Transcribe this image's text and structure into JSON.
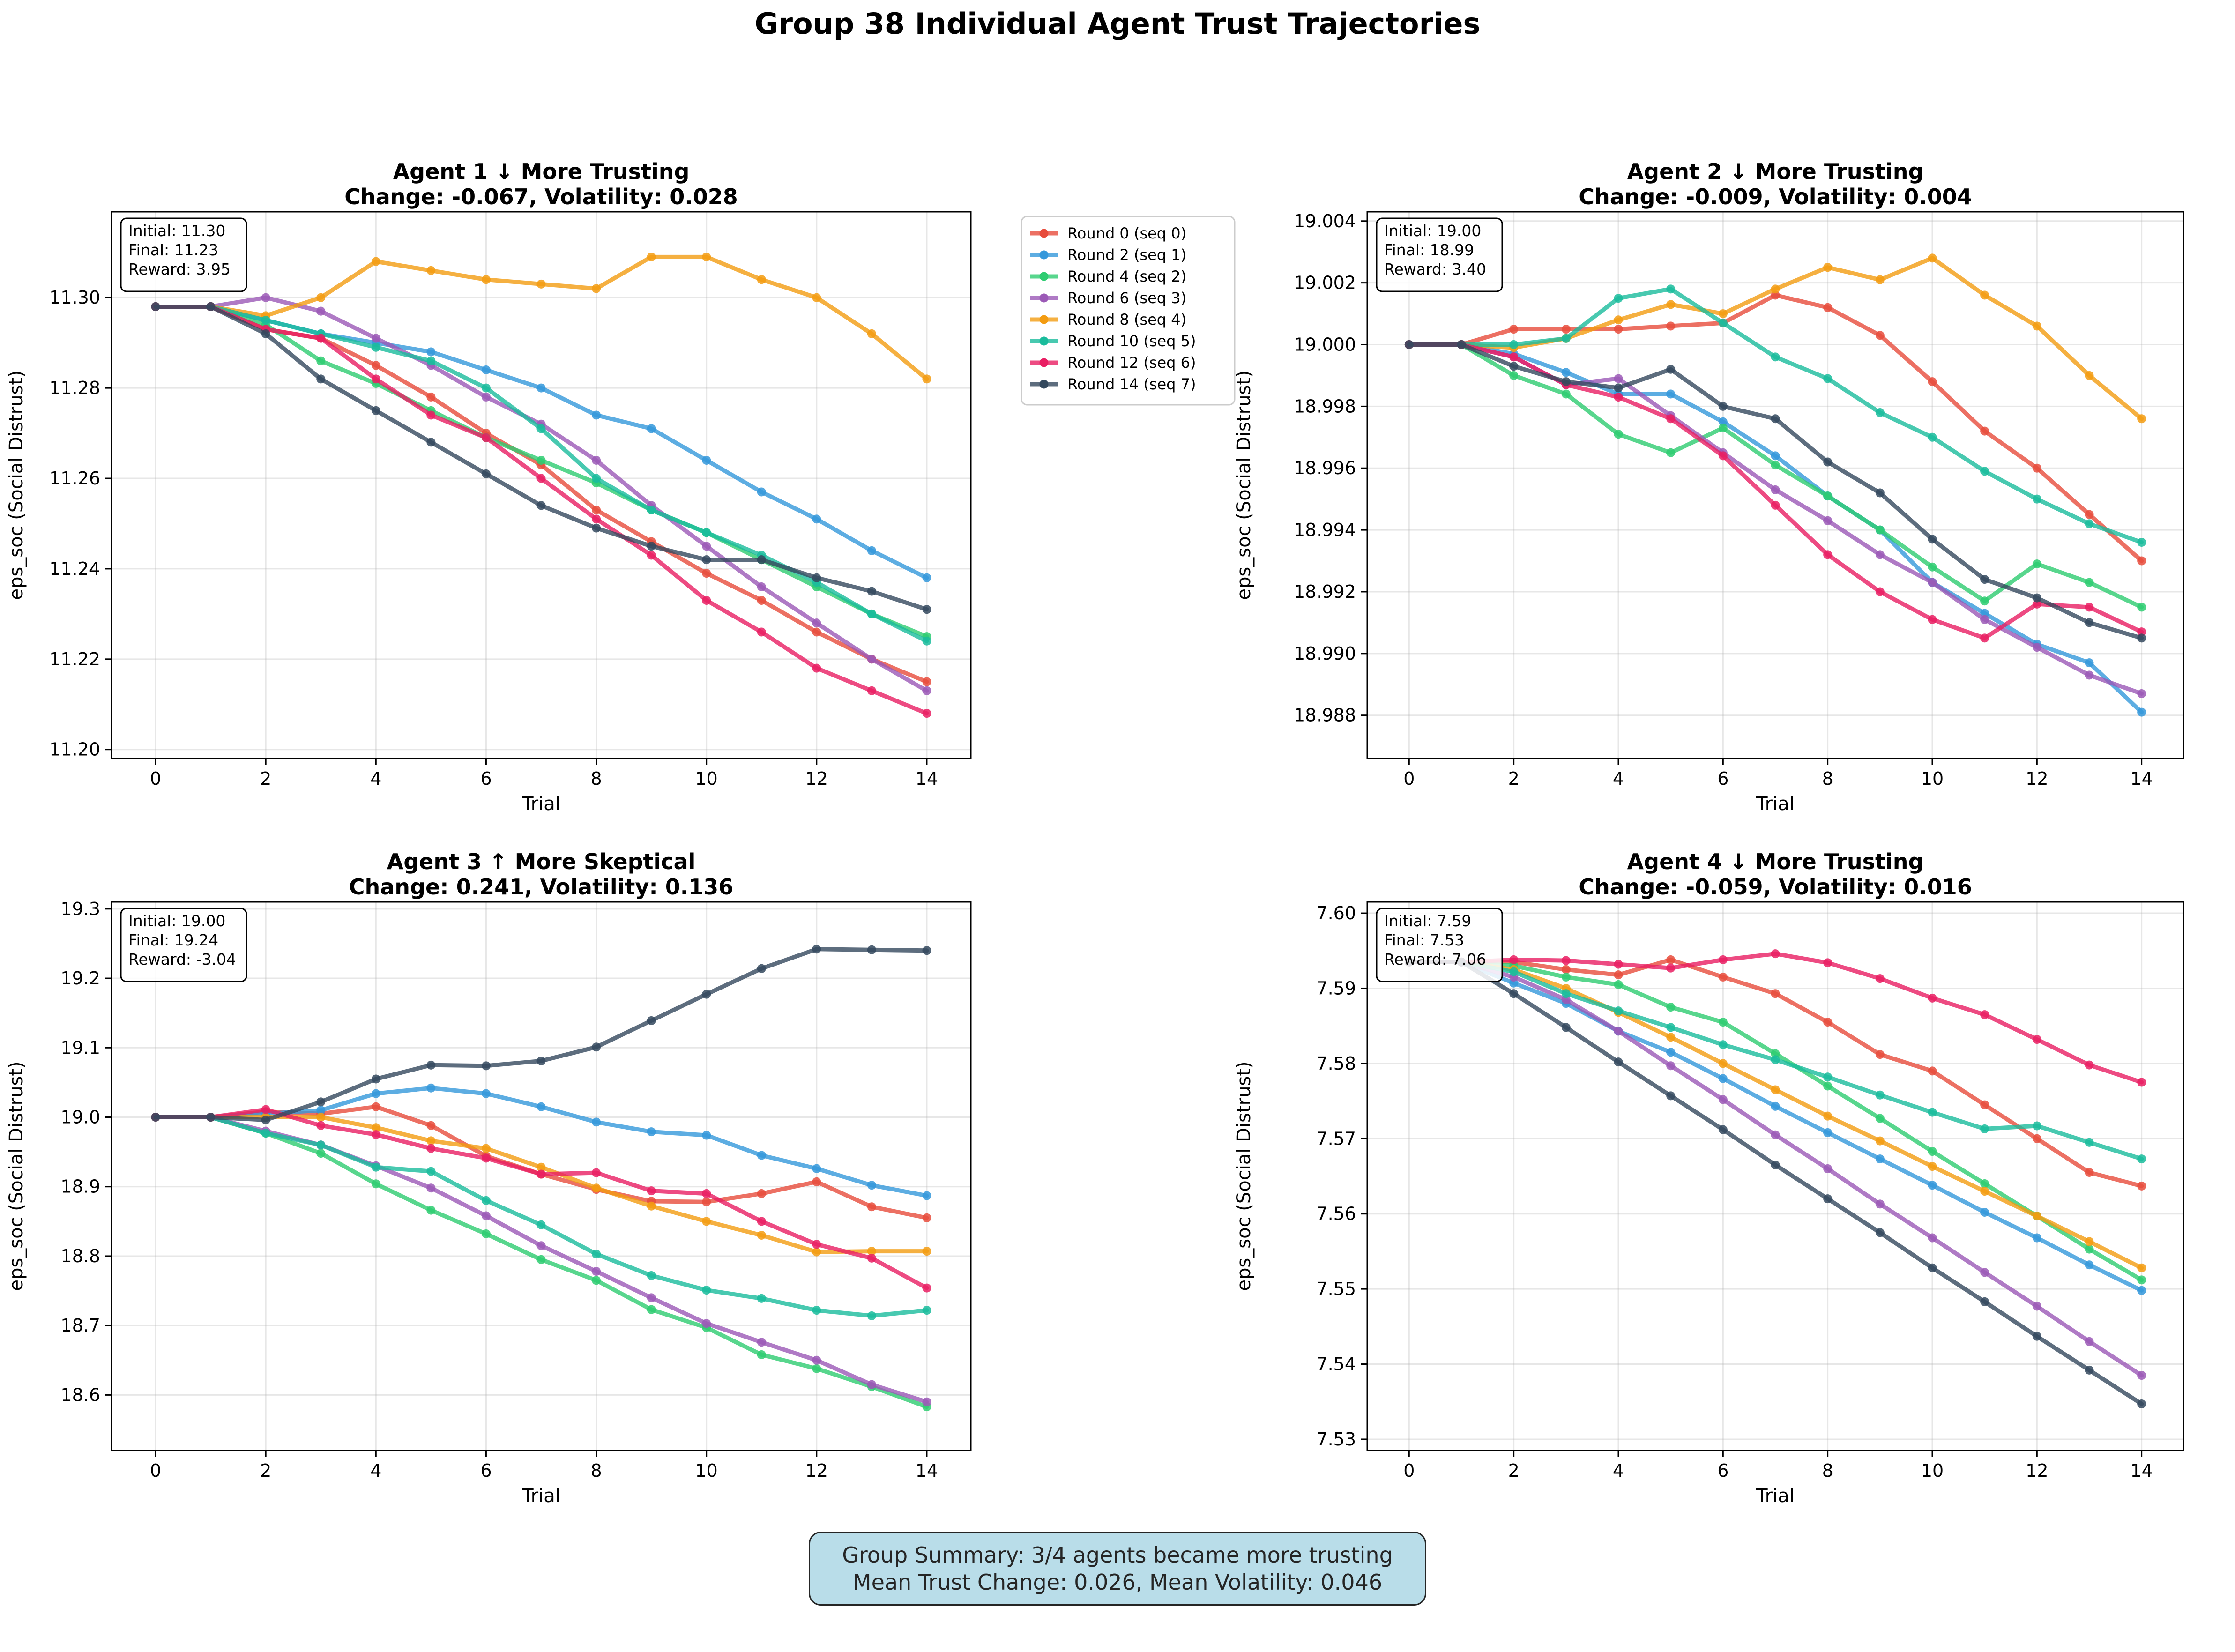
{
  "title": "Group 38 Individual Agent Trust Trajectories",
  "summary": {
    "line1": "Group Summary: 3/4 agents became more trusting",
    "line2": "Mean Trust Change: 0.026, Mean Volatility: 0.046"
  },
  "series_colors": [
    "#e74c3c",
    "#3498db",
    "#2ecc71",
    "#9b59b6",
    "#f39c12",
    "#1abc9c",
    "#e91e63",
    "#34495e"
  ],
  "chart_data": [
    {
      "type": "line",
      "title": "Agent 1 ↓ More Trusting",
      "subtitle": "Change: -0.067, Volatility: 0.028",
      "xlabel": "Trial",
      "ylabel": "eps_soc (Social Distrust)",
      "xlim": [
        -0.8,
        14.8
      ],
      "ylim": [
        11.198,
        11.319
      ],
      "xticks": [
        0,
        2,
        4,
        6,
        8,
        10,
        12,
        14
      ],
      "yticks": [
        11.2,
        11.22,
        11.24,
        11.26,
        11.28,
        11.3
      ],
      "yticklabels": [
        "11.20",
        "11.22",
        "11.24",
        "11.26",
        "11.28",
        "11.30"
      ],
      "grid": true,
      "legend": "outside-right",
      "info": [
        "Initial: 11.30",
        "Final: 11.23",
        "Reward: 3.95"
      ],
      "x": [
        0,
        1,
        2,
        3,
        4,
        5,
        6,
        7,
        8,
        9,
        10,
        11,
        12,
        13,
        14
      ],
      "series": [
        {
          "name": "Round 0 (seq 0)",
          "values": [
            11.298,
            11.298,
            11.293,
            11.291,
            11.285,
            11.278,
            11.27,
            11.263,
            11.253,
            11.246,
            11.239,
            11.233,
            11.226,
            11.22,
            11.215
          ]
        },
        {
          "name": "Round 2 (seq 1)",
          "values": [
            11.298,
            11.298,
            11.295,
            11.292,
            11.29,
            11.288,
            11.284,
            11.28,
            11.274,
            11.271,
            11.264,
            11.257,
            11.251,
            11.244,
            11.238
          ]
        },
        {
          "name": "Round 4 (seq 2)",
          "values": [
            11.298,
            11.298,
            11.294,
            11.286,
            11.281,
            11.275,
            11.269,
            11.264,
            11.259,
            11.253,
            11.248,
            11.242,
            11.236,
            11.23,
            11.225
          ]
        },
        {
          "name": "Round 6 (seq 3)",
          "values": [
            11.298,
            11.298,
            11.3,
            11.297,
            11.291,
            11.285,
            11.278,
            11.272,
            11.264,
            11.254,
            11.245,
            11.236,
            11.228,
            11.22,
            11.213
          ]
        },
        {
          "name": "Round 8 (seq 4)",
          "values": [
            11.298,
            11.298,
            11.296,
            11.3,
            11.308,
            11.306,
            11.304,
            11.303,
            11.302,
            11.309,
            11.309,
            11.304,
            11.3,
            11.292,
            11.282
          ]
        },
        {
          "name": "Round 10 (seq 5)",
          "values": [
            11.298,
            11.298,
            11.295,
            11.292,
            11.289,
            11.286,
            11.28,
            11.271,
            11.26,
            11.253,
            11.248,
            11.243,
            11.237,
            11.23,
            11.224
          ]
        },
        {
          "name": "Round 12 (seq 6)",
          "values": [
            11.298,
            11.298,
            11.293,
            11.291,
            11.282,
            11.274,
            11.269,
            11.26,
            11.251,
            11.243,
            11.233,
            11.226,
            11.218,
            11.213,
            11.208
          ]
        },
        {
          "name": "Round 14 (seq 7)",
          "values": [
            11.298,
            11.298,
            11.292,
            11.282,
            11.275,
            11.268,
            11.261,
            11.254,
            11.249,
            11.245,
            11.242,
            11.242,
            11.238,
            11.235,
            11.231
          ]
        }
      ]
    },
    {
      "type": "line",
      "title": "Agent 2 ↓ More Trusting",
      "subtitle": "Change: -0.009, Volatility: 0.004",
      "xlabel": "Trial",
      "ylabel": "eps_soc (Social Distrust)",
      "xlim": [
        -0.8,
        14.8
      ],
      "ylim": [
        18.9866,
        19.0043
      ],
      "xticks": [
        0,
        2,
        4,
        6,
        8,
        10,
        12,
        14
      ],
      "yticks": [
        18.988,
        18.99,
        18.992,
        18.994,
        18.996,
        18.998,
        19.0,
        19.002,
        19.004
      ],
      "yticklabels": [
        "18.988",
        "18.990",
        "18.992",
        "18.994",
        "18.996",
        "18.998",
        "19.000",
        "19.002",
        "19.004"
      ],
      "grid": true,
      "info": [
        "Initial: 19.00",
        "Final: 18.99",
        "Reward: 3.40"
      ],
      "x": [
        0,
        1,
        2,
        3,
        4,
        5,
        6,
        7,
        8,
        9,
        10,
        11,
        12,
        13,
        14
      ],
      "series": [
        {
          "name": "Round 0 (seq 0)",
          "values": [
            19.0,
            19.0,
            19.0005,
            19.0005,
            19.0005,
            19.0006,
            19.0007,
            19.0016,
            19.0012,
            19.0003,
            18.9988,
            18.9972,
            18.996,
            18.9945,
            18.993
          ]
        },
        {
          "name": "Round 2 (seq 1)",
          "values": [
            19.0,
            19.0,
            18.9997,
            18.9991,
            18.9984,
            18.9984,
            18.9975,
            18.9964,
            18.9951,
            18.994,
            18.9923,
            18.9913,
            18.9903,
            18.9897,
            18.9881
          ]
        },
        {
          "name": "Round 4 (seq 2)",
          "values": [
            19.0,
            19.0,
            18.999,
            18.9984,
            18.9971,
            18.9965,
            18.9973,
            18.9961,
            18.9951,
            18.994,
            18.9928,
            18.9917,
            18.9929,
            18.9923,
            18.9915
          ]
        },
        {
          "name": "Round 6 (seq 3)",
          "values": [
            19.0,
            19.0,
            18.9996,
            18.9987,
            18.9989,
            18.9977,
            18.9965,
            18.9953,
            18.9943,
            18.9932,
            18.9923,
            18.9911,
            18.9902,
            18.9893,
            18.9887
          ]
        },
        {
          "name": "Round 8 (seq 4)",
          "values": [
            19.0,
            19.0,
            18.9999,
            19.0002,
            19.0008,
            19.0013,
            19.001,
            19.0018,
            19.0025,
            19.0021,
            19.0028,
            19.0016,
            19.0006,
            18.999,
            18.9976
          ]
        },
        {
          "name": "Round 10 (seq 5)",
          "values": [
            19.0,
            19.0,
            19.0,
            19.0002,
            19.0015,
            19.0018,
            19.0007,
            18.9996,
            18.9989,
            18.9978,
            18.997,
            18.9959,
            18.995,
            18.9942,
            18.9936
          ]
        },
        {
          "name": "Round 12 (seq 6)",
          "values": [
            19.0,
            19.0,
            18.9996,
            18.9987,
            18.9983,
            18.9976,
            18.9964,
            18.9948,
            18.9932,
            18.992,
            18.9911,
            18.9905,
            18.9916,
            18.9915,
            18.9907
          ]
        },
        {
          "name": "Round 14 (seq 7)",
          "values": [
            19.0,
            19.0,
            18.9993,
            18.9988,
            18.9986,
            18.9992,
            18.998,
            18.9976,
            18.9962,
            18.9952,
            18.9937,
            18.9924,
            18.9918,
            18.991,
            18.9905
          ]
        }
      ]
    },
    {
      "type": "line",
      "title": "Agent 3 ↑ More Skeptical",
      "subtitle": "Change: 0.241, Volatility: 0.136",
      "xlabel": "Trial",
      "ylabel": "eps_soc (Social Distrust)",
      "xlim": [
        -0.8,
        14.8
      ],
      "ylim": [
        18.52,
        19.31
      ],
      "xticks": [
        0,
        2,
        4,
        6,
        8,
        10,
        12,
        14
      ],
      "yticks": [
        18.6,
        18.7,
        18.8,
        18.9,
        19.0,
        19.1,
        19.2,
        19.3
      ],
      "yticklabels": [
        "18.6",
        "18.7",
        "18.8",
        "18.9",
        "19.0",
        "19.1",
        "19.2",
        "19.3"
      ],
      "grid": true,
      "info": [
        "Initial: 19.00",
        "Final: 19.24",
        "Reward: -3.04"
      ],
      "x": [
        0,
        1,
        2,
        3,
        4,
        5,
        6,
        7,
        8,
        9,
        10,
        11,
        12,
        13,
        14
      ],
      "series": [
        {
          "name": "Round 0 (seq 0)",
          "values": [
            19.0,
            19.0,
            19.008,
            19.005,
            19.015,
            18.988,
            18.944,
            18.918,
            18.896,
            18.879,
            18.878,
            18.89,
            18.907,
            18.871,
            18.855
          ]
        },
        {
          "name": "Round 2 (seq 1)",
          "values": [
            19.0,
            19.0,
            19.005,
            19.01,
            19.034,
            19.042,
            19.034,
            19.015,
            18.993,
            18.979,
            18.974,
            18.945,
            18.926,
            18.902,
            18.887
          ]
        },
        {
          "name": "Round 4 (seq 2)",
          "values": [
            19.0,
            19.0,
            18.977,
            18.948,
            18.904,
            18.866,
            18.832,
            18.795,
            18.765,
            18.723,
            18.697,
            18.658,
            18.638,
            18.612,
            18.583
          ]
        },
        {
          "name": "Round 6 (seq 3)",
          "values": [
            19.0,
            19.0,
            18.98,
            18.96,
            18.93,
            18.898,
            18.858,
            18.815,
            18.778,
            18.74,
            18.703,
            18.676,
            18.65,
            18.615,
            18.59
          ]
        },
        {
          "name": "Round 8 (seq 4)",
          "values": [
            19.0,
            19.0,
            19.0,
            19.0,
            18.985,
            18.966,
            18.955,
            18.928,
            18.898,
            18.872,
            18.85,
            18.83,
            18.806,
            18.807,
            18.807
          ]
        },
        {
          "name": "Round 10 (seq 5)",
          "values": [
            19.0,
            19.0,
            18.977,
            18.96,
            18.928,
            18.922,
            18.88,
            18.845,
            18.803,
            18.772,
            18.751,
            18.739,
            18.722,
            18.714,
            18.722
          ]
        },
        {
          "name": "Round 12 (seq 6)",
          "values": [
            19.0,
            19.0,
            19.011,
            18.988,
            18.975,
            18.955,
            18.941,
            18.918,
            18.92,
            18.894,
            18.89,
            18.85,
            18.817,
            18.797,
            18.754
          ]
        },
        {
          "name": "Round 14 (seq 7)",
          "values": [
            19.0,
            19.0,
            18.996,
            19.022,
            19.055,
            19.075,
            19.074,
            19.081,
            19.101,
            19.139,
            19.177,
            19.214,
            19.242,
            19.241,
            19.24
          ]
        }
      ]
    },
    {
      "type": "line",
      "title": "Agent 4 ↓ More Trusting",
      "subtitle": "Change: -0.059, Volatility: 0.016",
      "xlabel": "Trial",
      "ylabel": "eps_soc (Social Distrust)",
      "xlim": [
        -0.8,
        14.8
      ],
      "ylim": [
        7.5285,
        7.6015
      ],
      "xticks": [
        0,
        2,
        4,
        6,
        8,
        10,
        12,
        14
      ],
      "yticks": [
        7.53,
        7.54,
        7.55,
        7.56,
        7.57,
        7.58,
        7.59,
        7.6
      ],
      "yticklabels": [
        "7.53",
        "7.54",
        "7.55",
        "7.56",
        "7.57",
        "7.58",
        "7.59",
        "7.60"
      ],
      "grid": true,
      "info": [
        "Initial: 7.59",
        "Final: 7.53",
        "Reward: 7.06"
      ],
      "x": [
        0,
        1,
        2,
        3,
        4,
        5,
        6,
        7,
        8,
        9,
        10,
        11,
        12,
        13,
        14
      ],
      "series": [
        {
          "name": "Round 0 (seq 0)",
          "values": [
            7.5935,
            7.5935,
            7.5935,
            7.5925,
            7.5918,
            7.5938,
            7.5915,
            7.5893,
            7.5855,
            7.5812,
            7.579,
            7.5745,
            7.57,
            7.5655,
            7.5637
          ]
        },
        {
          "name": "Round 2 (seq 1)",
          "values": [
            7.5935,
            7.5935,
            7.5907,
            7.588,
            7.5843,
            7.5815,
            7.578,
            7.5743,
            7.5708,
            7.5673,
            7.5638,
            7.5602,
            7.5568,
            7.5532,
            7.5498
          ]
        },
        {
          "name": "Round 4 (seq 2)",
          "values": [
            7.5935,
            7.5935,
            7.593,
            7.5915,
            7.5905,
            7.5875,
            7.5855,
            7.5813,
            7.577,
            7.5727,
            7.5683,
            7.564,
            7.5597,
            7.5553,
            7.5512
          ]
        },
        {
          "name": "Round 6 (seq 3)",
          "values": [
            7.5935,
            7.5935,
            7.5915,
            7.5885,
            7.5843,
            7.5797,
            7.5752,
            7.5705,
            7.566,
            7.5613,
            7.5568,
            7.5522,
            7.5477,
            7.543,
            7.5385
          ]
        },
        {
          "name": "Round 8 (seq 4)",
          "values": [
            7.5935,
            7.5935,
            7.5925,
            7.59,
            7.5868,
            7.5835,
            7.58,
            7.5765,
            7.573,
            7.5697,
            7.5663,
            7.563,
            7.5597,
            7.5563,
            7.5528
          ]
        },
        {
          "name": "Round 10 (seq 5)",
          "values": [
            7.5935,
            7.5935,
            7.5922,
            7.5893,
            7.587,
            7.5848,
            7.5825,
            7.5805,
            7.5782,
            7.5758,
            7.5735,
            7.5713,
            7.5717,
            7.5695,
            7.5673
          ]
        },
        {
          "name": "Round 12 (seq 6)",
          "values": [
            7.5935,
            7.5935,
            7.5938,
            7.5937,
            7.5932,
            7.5927,
            7.5938,
            7.5946,
            7.5934,
            7.5913,
            7.5887,
            7.5865,
            7.5832,
            7.5798,
            7.5775
          ]
        },
        {
          "name": "Round 14 (seq 7)",
          "values": [
            7.5935,
            7.5935,
            7.5893,
            7.5848,
            7.5802,
            7.5757,
            7.5712,
            7.5665,
            7.562,
            7.5575,
            7.5528,
            7.5483,
            7.5437,
            7.5392,
            7.5347
          ]
        }
      ]
    }
  ]
}
